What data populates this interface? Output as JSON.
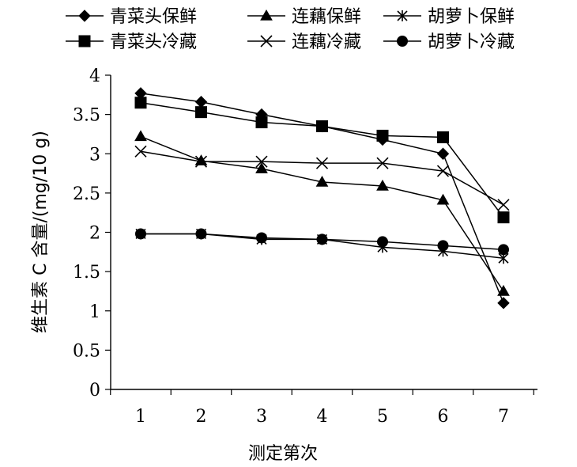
{
  "chart_data": {
    "type": "line",
    "title": "",
    "xlabel": "测定第次",
    "ylabel": "维生素 C 含量/(mg/10 g)",
    "x": [
      1,
      2,
      3,
      4,
      5,
      6,
      7
    ],
    "x_ticks": [
      "1",
      "2",
      "3",
      "4",
      "5",
      "6",
      "7"
    ],
    "ylim": [
      0,
      4
    ],
    "y_ticks": [
      "0",
      "0.5",
      "1",
      "1.5",
      "2",
      "2.5",
      "3",
      "3.5",
      "4"
    ],
    "grid": false,
    "legend_position": "top",
    "series": [
      {
        "name": "青菜头保鲜",
        "marker": "diamond",
        "values": [
          3.77,
          3.66,
          3.5,
          3.35,
          3.18,
          3.0,
          1.1
        ]
      },
      {
        "name": "连藕保鲜",
        "marker": "triangle",
        "values": [
          3.22,
          2.91,
          2.81,
          2.64,
          2.59,
          2.41,
          1.25
        ]
      },
      {
        "name": "胡萝卜保鲜",
        "marker": "asterisk",
        "values": [
          1.98,
          1.98,
          1.91,
          1.91,
          1.81,
          1.76,
          1.67
        ]
      },
      {
        "name": "青菜头冷藏",
        "marker": "square",
        "values": [
          3.65,
          3.53,
          3.4,
          3.35,
          3.23,
          3.21,
          2.19
        ]
      },
      {
        "name": "连藕冷藏",
        "marker": "x",
        "values": [
          3.03,
          2.9,
          2.9,
          2.88,
          2.88,
          2.78,
          2.35
        ]
      },
      {
        "name": "胡萝卜冷藏",
        "marker": "circle",
        "values": [
          1.98,
          1.98,
          1.93,
          1.91,
          1.88,
          1.83,
          1.78
        ]
      }
    ]
  }
}
